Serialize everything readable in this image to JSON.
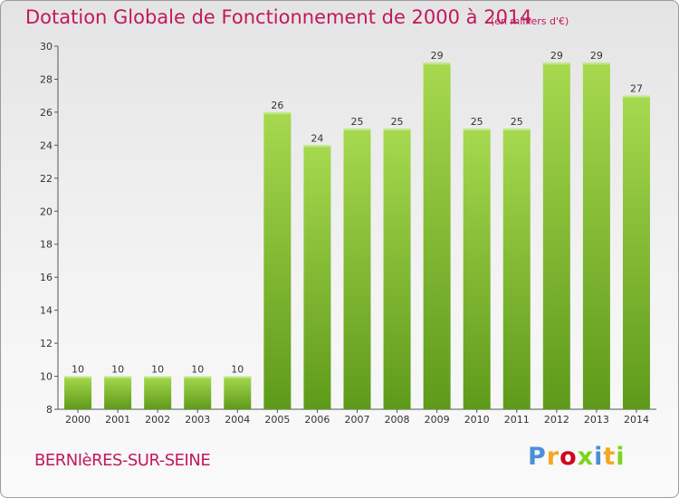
{
  "title": "Dotation Globale de Fonctionnement de 2000 à 2014",
  "subtitle": "(en milliers d'€)",
  "commune": "BERNIèRES-SUR-SEINE",
  "logo": {
    "text": "Proxiti",
    "colors": [
      "#4a90d9",
      "#f5a623",
      "#d0021b",
      "#7ed321",
      "#4a90d9",
      "#f5a623",
      "#7ed321"
    ]
  },
  "colors": {
    "bar_top": "#a6d94e",
    "bar_bottom": "#5e9a1a",
    "title": "#c2185b"
  },
  "chart_data": {
    "type": "bar",
    "title": "Dotation Globale de Fonctionnement de 2000 à 2014",
    "subtitle": "(en milliers d'€)",
    "categories": [
      "2000",
      "2001",
      "2002",
      "2003",
      "2004",
      "2005",
      "2006",
      "2007",
      "2008",
      "2009",
      "2010",
      "2011",
      "2012",
      "2013",
      "2014"
    ],
    "values": [
      10,
      10,
      10,
      10,
      10,
      26,
      24,
      25,
      25,
      29,
      25,
      25,
      29,
      29,
      27
    ],
    "ylim": [
      8,
      30
    ],
    "yticks": [
      8,
      10,
      12,
      14,
      16,
      18,
      20,
      22,
      24,
      26,
      28,
      30
    ],
    "grid": false,
    "legend": "none"
  }
}
